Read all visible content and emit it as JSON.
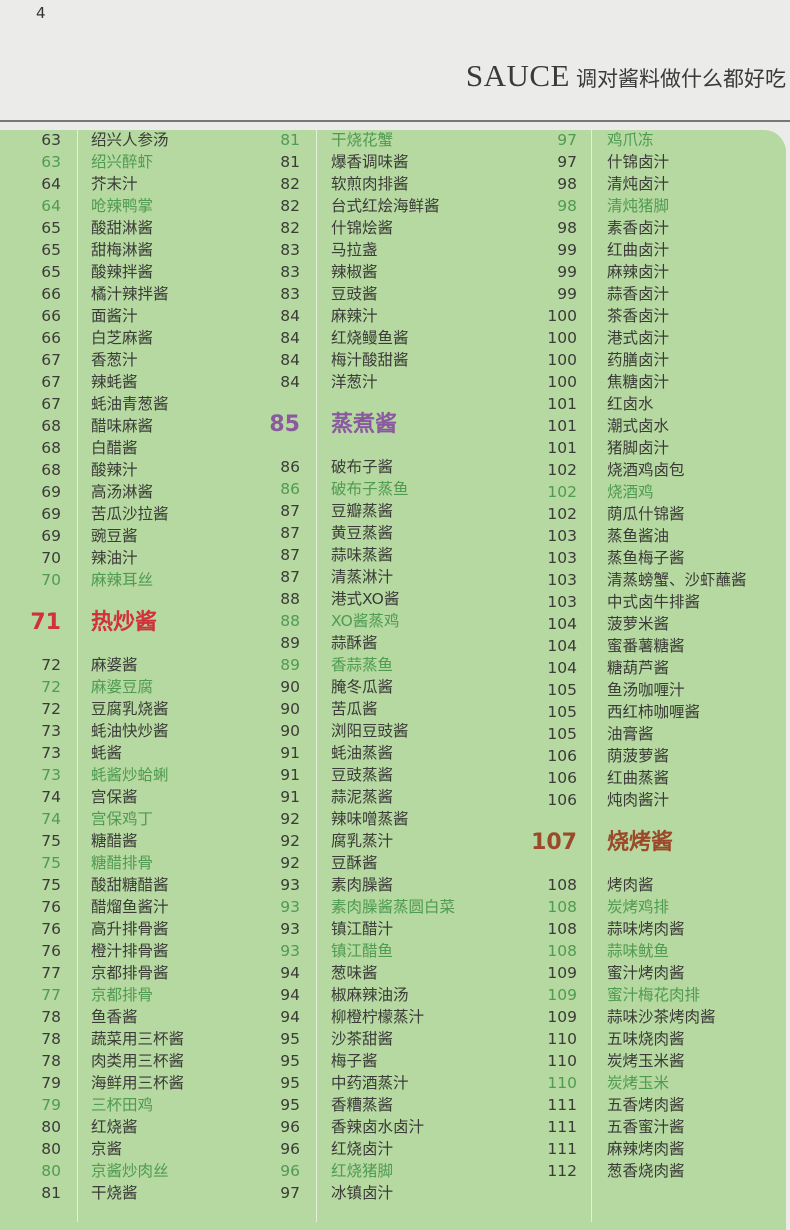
{
  "page_number": "4",
  "header": {
    "title_en": "SAUCE",
    "title_zh": "调对酱料做什么都好吃"
  },
  "colors": {
    "background": "#b6d8a1",
    "sauce_text": "#3b3b38",
    "dish_text": "#4f9b52",
    "section_hot_stir_fry": "#d0313a",
    "section_steam_boil": "#8a5aa0",
    "section_bbq": "#9a4a2a"
  },
  "columns": [
    [
      {
        "page": "63",
        "name": "绍兴人参汤",
        "type": "sauce"
      },
      {
        "page": "63",
        "name": "绍兴醉虾",
        "type": "dish"
      },
      {
        "page": "64",
        "name": "芥末汁",
        "type": "sauce"
      },
      {
        "page": "64",
        "name": "呛辣鸭掌",
        "type": "dish"
      },
      {
        "page": "65",
        "name": "酸甜淋酱",
        "type": "sauce"
      },
      {
        "page": "65",
        "name": "甜梅淋酱",
        "type": "sauce"
      },
      {
        "page": "65",
        "name": "酸辣拌酱",
        "type": "sauce"
      },
      {
        "page": "66",
        "name": "橘汁辣拌酱",
        "type": "sauce"
      },
      {
        "page": "66",
        "name": "面酱汁",
        "type": "sauce"
      },
      {
        "page": "66",
        "name": "白芝麻酱",
        "type": "sauce"
      },
      {
        "page": "67",
        "name": "香葱汁",
        "type": "sauce"
      },
      {
        "page": "67",
        "name": "辣蚝酱",
        "type": "sauce"
      },
      {
        "page": "67",
        "name": "蚝油青葱酱",
        "type": "sauce"
      },
      {
        "page": "68",
        "name": "醋味麻酱",
        "type": "sauce"
      },
      {
        "page": "68",
        "name": "白醋酱",
        "type": "sauce"
      },
      {
        "page": "68",
        "name": "酸辣汁",
        "type": "sauce"
      },
      {
        "page": "69",
        "name": "高汤淋酱",
        "type": "sauce"
      },
      {
        "page": "69",
        "name": "苦瓜沙拉酱",
        "type": "sauce"
      },
      {
        "page": "69",
        "name": "豌豆酱",
        "type": "sauce"
      },
      {
        "page": "70",
        "name": "辣油汁",
        "type": "sauce"
      },
      {
        "page": "70",
        "name": "麻辣耳丝",
        "type": "dish"
      },
      {
        "page": "71",
        "name": "热炒酱",
        "type": "section",
        "color": "#d0313a"
      },
      {
        "page": "72",
        "name": "麻婆酱",
        "type": "sauce"
      },
      {
        "page": "72",
        "name": "麻婆豆腐",
        "type": "dish"
      },
      {
        "page": "72",
        "name": "豆腐乳烧酱",
        "type": "sauce"
      },
      {
        "page": "73",
        "name": "蚝油快炒酱",
        "type": "sauce"
      },
      {
        "page": "73",
        "name": "蚝酱",
        "type": "sauce"
      },
      {
        "page": "73",
        "name": "蚝酱炒蛤蜊",
        "type": "dish"
      },
      {
        "page": "74",
        "name": "宫保酱",
        "type": "sauce"
      },
      {
        "page": "74",
        "name": "宫保鸡丁",
        "type": "dish"
      },
      {
        "page": "75",
        "name": "糖醋酱",
        "type": "sauce"
      },
      {
        "page": "75",
        "name": "糖醋排骨",
        "type": "dish"
      },
      {
        "page": "75",
        "name": "酸甜糖醋酱",
        "type": "sauce"
      },
      {
        "page": "76",
        "name": "醋熘鱼酱汁",
        "type": "sauce"
      },
      {
        "page": "76",
        "name": "高升排骨酱",
        "type": "sauce"
      },
      {
        "page": "76",
        "name": "橙汁排骨酱",
        "type": "sauce"
      },
      {
        "page": "77",
        "name": "京都排骨酱",
        "type": "sauce"
      },
      {
        "page": "77",
        "name": "京都排骨",
        "type": "dish"
      },
      {
        "page": "78",
        "name": "鱼香酱",
        "type": "sauce"
      },
      {
        "page": "78",
        "name": "蔬菜用三杯酱",
        "type": "sauce"
      },
      {
        "page": "78",
        "name": "肉类用三杯酱",
        "type": "sauce"
      },
      {
        "page": "79",
        "name": "海鲜用三杯酱",
        "type": "sauce"
      },
      {
        "page": "79",
        "name": "三杯田鸡",
        "type": "dish"
      },
      {
        "page": "80",
        "name": "红烧酱",
        "type": "sauce"
      },
      {
        "page": "80",
        "name": "京酱",
        "type": "sauce"
      },
      {
        "page": "80",
        "name": "京酱炒肉丝",
        "type": "dish"
      },
      {
        "page": "81",
        "name": "干烧酱",
        "type": "sauce"
      }
    ],
    [
      {
        "page": "81",
        "name": "干烧花蟹",
        "type": "dish"
      },
      {
        "page": "81",
        "name": "爆香调味酱",
        "type": "sauce"
      },
      {
        "page": "82",
        "name": "软煎肉排酱",
        "type": "sauce"
      },
      {
        "page": "82",
        "name": "台式红烩海鲜酱",
        "type": "sauce"
      },
      {
        "page": "82",
        "name": "什锦烩酱",
        "type": "sauce"
      },
      {
        "page": "83",
        "name": "马拉盏",
        "type": "sauce"
      },
      {
        "page": "83",
        "name": "辣椒酱",
        "type": "sauce"
      },
      {
        "page": "83",
        "name": "豆豉酱",
        "type": "sauce"
      },
      {
        "page": "84",
        "name": "麻辣汁",
        "type": "sauce"
      },
      {
        "page": "84",
        "name": "红烧鳗鱼酱",
        "type": "sauce"
      },
      {
        "page": "84",
        "name": "梅汁酸甜酱",
        "type": "sauce"
      },
      {
        "page": "84",
        "name": "洋葱汁",
        "type": "sauce"
      },
      {
        "page": "85",
        "name": "蒸煮酱",
        "type": "section",
        "color": "#8a5aa0"
      },
      {
        "page": "86",
        "name": "破布子酱",
        "type": "sauce"
      },
      {
        "page": "86",
        "name": "破布子蒸鱼",
        "type": "dish"
      },
      {
        "page": "87",
        "name": "豆瓣蒸酱",
        "type": "sauce"
      },
      {
        "page": "87",
        "name": "黄豆蒸酱",
        "type": "sauce"
      },
      {
        "page": "87",
        "name": "蒜味蒸酱",
        "type": "sauce"
      },
      {
        "page": "87",
        "name": "清蒸淋汁",
        "type": "sauce"
      },
      {
        "page": "88",
        "name": "港式XO酱",
        "type": "sauce"
      },
      {
        "page": "88",
        "name": "XO酱蒸鸡",
        "type": "dish"
      },
      {
        "page": "89",
        "name": "蒜酥酱",
        "type": "sauce"
      },
      {
        "page": "89",
        "name": "香蒜蒸鱼",
        "type": "dish"
      },
      {
        "page": "90",
        "name": "腌冬瓜酱",
        "type": "sauce"
      },
      {
        "page": "90",
        "name": "苦瓜酱",
        "type": "sauce"
      },
      {
        "page": "90",
        "name": "浏阳豆豉酱",
        "type": "sauce"
      },
      {
        "page": "91",
        "name": "蚝油蒸酱",
        "type": "sauce"
      },
      {
        "page": "91",
        "name": "豆豉蒸酱",
        "type": "sauce"
      },
      {
        "page": "91",
        "name": "蒜泥蒸酱",
        "type": "sauce"
      },
      {
        "page": "92",
        "name": "辣味噌蒸酱",
        "type": "sauce"
      },
      {
        "page": "92",
        "name": "腐乳蒸汁",
        "type": "sauce"
      },
      {
        "page": "92",
        "name": "豆酥酱",
        "type": "sauce"
      },
      {
        "page": "93",
        "name": "素肉臊酱",
        "type": "sauce"
      },
      {
        "page": "93",
        "name": "素肉臊酱蒸圆白菜",
        "type": "dish"
      },
      {
        "page": "93",
        "name": "镇江醋汁",
        "type": "sauce"
      },
      {
        "page": "93",
        "name": "镇江醋鱼",
        "type": "dish"
      },
      {
        "page": "94",
        "name": "葱味酱",
        "type": "sauce"
      },
      {
        "page": "94",
        "name": "椒麻辣油汤",
        "type": "sauce"
      },
      {
        "page": "94",
        "name": "柳橙柠檬蒸汁",
        "type": "sauce"
      },
      {
        "page": "95",
        "name": "沙茶甜酱",
        "type": "sauce"
      },
      {
        "page": "95",
        "name": "梅子酱",
        "type": "sauce"
      },
      {
        "page": "95",
        "name": "中药酒蒸汁",
        "type": "sauce"
      },
      {
        "page": "95",
        "name": "香糟蒸酱",
        "type": "sauce"
      },
      {
        "page": "96",
        "name": "香辣卤水卤汁",
        "type": "sauce"
      },
      {
        "page": "96",
        "name": "红烧卤汁",
        "type": "sauce"
      },
      {
        "page": "96",
        "name": "红烧猪脚",
        "type": "dish"
      },
      {
        "page": "97",
        "name": "冰镇卤汁",
        "type": "sauce"
      }
    ],
    [
      {
        "page": "97",
        "name": "鸡爪冻",
        "type": "dish"
      },
      {
        "page": "97",
        "name": "什锦卤汁",
        "type": "sauce"
      },
      {
        "page": "98",
        "name": "清炖卤汁",
        "type": "sauce"
      },
      {
        "page": "98",
        "name": "清炖猪脚",
        "type": "dish"
      },
      {
        "page": "98",
        "name": "素香卤汁",
        "type": "sauce"
      },
      {
        "page": "99",
        "name": "红曲卤汁",
        "type": "sauce"
      },
      {
        "page": "99",
        "name": "麻辣卤汁",
        "type": "sauce"
      },
      {
        "page": "99",
        "name": "蒜香卤汁",
        "type": "sauce"
      },
      {
        "page": "100",
        "name": "茶香卤汁",
        "type": "sauce"
      },
      {
        "page": "100",
        "name": "港式卤汁",
        "type": "sauce"
      },
      {
        "page": "100",
        "name": "药膳卤汁",
        "type": "sauce"
      },
      {
        "page": "100",
        "name": "焦糖卤汁",
        "type": "sauce"
      },
      {
        "page": "101",
        "name": "红卤水",
        "type": "sauce"
      },
      {
        "page": "101",
        "name": "潮式卤水",
        "type": "sauce"
      },
      {
        "page": "101",
        "name": "猪脚卤汁",
        "type": "sauce"
      },
      {
        "page": "102",
        "name": "烧酒鸡卤包",
        "type": "sauce"
      },
      {
        "page": "102",
        "name": "烧酒鸡",
        "type": "dish"
      },
      {
        "page": "102",
        "name": "荫瓜什锦酱",
        "type": "sauce"
      },
      {
        "page": "103",
        "name": "蒸鱼酱油",
        "type": "sauce"
      },
      {
        "page": "103",
        "name": "蒸鱼梅子酱",
        "type": "sauce"
      },
      {
        "page": "103",
        "name": "清蒸螃蟹、沙虾蘸酱",
        "type": "sauce"
      },
      {
        "page": "103",
        "name": "中式卤牛排酱",
        "type": "sauce"
      },
      {
        "page": "104",
        "name": "菠萝米酱",
        "type": "sauce"
      },
      {
        "page": "104",
        "name": "蜜番薯糖酱",
        "type": "sauce"
      },
      {
        "page": "104",
        "name": "糖葫芦酱",
        "type": "sauce"
      },
      {
        "page": "105",
        "name": "鱼汤咖喱汁",
        "type": "sauce"
      },
      {
        "page": "105",
        "name": "西红柿咖喱酱",
        "type": "sauce"
      },
      {
        "page": "105",
        "name": "油膏酱",
        "type": "sauce"
      },
      {
        "page": "106",
        "name": "荫菠萝酱",
        "type": "sauce"
      },
      {
        "page": "106",
        "name": "红曲蒸酱",
        "type": "sauce"
      },
      {
        "page": "106",
        "name": "炖肉酱汁",
        "type": "sauce"
      },
      {
        "page": "107",
        "name": "烧烤酱",
        "type": "section",
        "color": "#9a4a2a"
      },
      {
        "page": "108",
        "name": "烤肉酱",
        "type": "sauce"
      },
      {
        "page": "108",
        "name": "炭烤鸡排",
        "type": "dish"
      },
      {
        "page": "108",
        "name": "蒜味烤肉酱",
        "type": "sauce"
      },
      {
        "page": "108",
        "name": "蒜味鱿鱼",
        "type": "dish"
      },
      {
        "page": "109",
        "name": "蜜汁烤肉酱",
        "type": "sauce"
      },
      {
        "page": "109",
        "name": "蜜汁梅花肉排",
        "type": "dish"
      },
      {
        "page": "109",
        "name": "蒜味沙茶烤肉酱",
        "type": "sauce"
      },
      {
        "page": "110",
        "name": "五味烧肉酱",
        "type": "sauce"
      },
      {
        "page": "110",
        "name": "炭烤玉米酱",
        "type": "sauce"
      },
      {
        "page": "110",
        "name": "炭烤玉米",
        "type": "dish"
      },
      {
        "page": "111",
        "name": "五香烤肉酱",
        "type": "sauce"
      },
      {
        "page": "111",
        "name": "五香蜜汁酱",
        "type": "sauce"
      },
      {
        "page": "111",
        "name": "麻辣烤肉酱",
        "type": "sauce"
      },
      {
        "page": "112",
        "name": "葱香烧肉酱",
        "type": "sauce"
      }
    ]
  ]
}
